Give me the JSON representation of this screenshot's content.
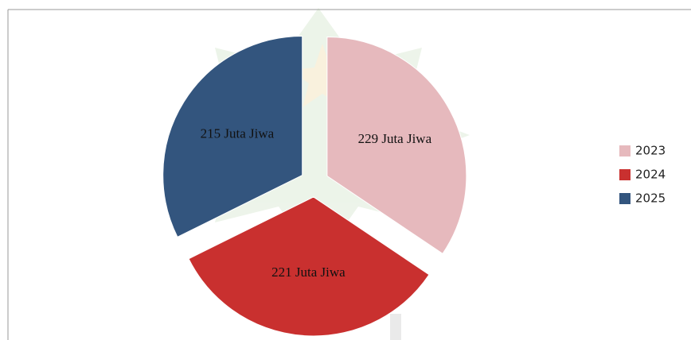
{
  "chart_data": {
    "type": "pie",
    "categories": [
      "2023",
      "2024",
      "2025"
    ],
    "values": [
      229,
      221,
      215
    ],
    "value_labels": [
      "229 Juta Jiwa",
      "221 Juta Jiwa",
      "215 Juta Jiwa"
    ],
    "colors": [
      "#e6b9bd",
      "#c9302f",
      "#33557e"
    ],
    "legend": "right"
  }
}
